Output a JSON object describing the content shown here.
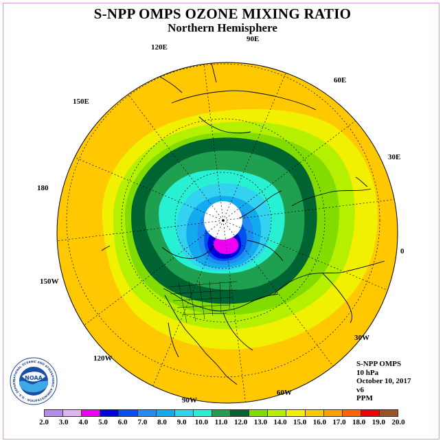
{
  "title": "S-NPP OMPS OZONE MIXING RATIO",
  "subtitle": "Northern Hemisphere",
  "longitude_labels": [
    "120E",
    "90E",
    "60E",
    "150E",
    "30E",
    "180",
    "0",
    "150W",
    "30W",
    "120W",
    "60W",
    "90W"
  ],
  "info": {
    "instrument": "S-NPP OMPS",
    "level": "10 hPa",
    "date": "October 10, 2017",
    "version": "v6",
    "units": "PPM"
  },
  "logo": {
    "text": "NOAA",
    "ring_text": "NATIONAL OCEANIC AND ATMOSPHERIC ADMINISTRATION · U.S. DEPARTMENT OF COMMERCE"
  },
  "colorbar": {
    "ticks": [
      "2.0",
      "3.0",
      "4.0",
      "5.0",
      "6.0",
      "7.0",
      "8.0",
      "9.0",
      "10.0",
      "11.0",
      "12.0",
      "13.0",
      "14.0",
      "15.0",
      "16.0",
      "17.0",
      "18.0",
      "19.0",
      "20.0"
    ],
    "colors": [
      "#b48cf0",
      "#dcb4f0",
      "#f000f0",
      "#0000dc",
      "#0050f0",
      "#1e8cf0",
      "#14aaf0",
      "#32d2f0",
      "#28f0d2",
      "#1ea050",
      "#006432",
      "#82dc00",
      "#b4f000",
      "#f0f000",
      "#ffc800",
      "#ffa000",
      "#ff6400",
      "#f00000",
      "#a05028"
    ]
  },
  "map_fill_colors": {
    "outer": "#ffc800",
    "band_yellow": "#f0f000",
    "band_lime": "#b4f000",
    "band_yellowgreen": "#82dc00",
    "band_darkgreen": "#006432",
    "band_green": "#1ea050",
    "band_aqua": "#28f0d2",
    "band_cyan": "#32d2f0",
    "band_sky": "#14aaf0",
    "band_blue": "#1e8cf0",
    "band_royal": "#0050f0",
    "band_navy": "#0000dc",
    "band_magenta": "#f000f0",
    "pole_nodata": "#ffffff"
  }
}
